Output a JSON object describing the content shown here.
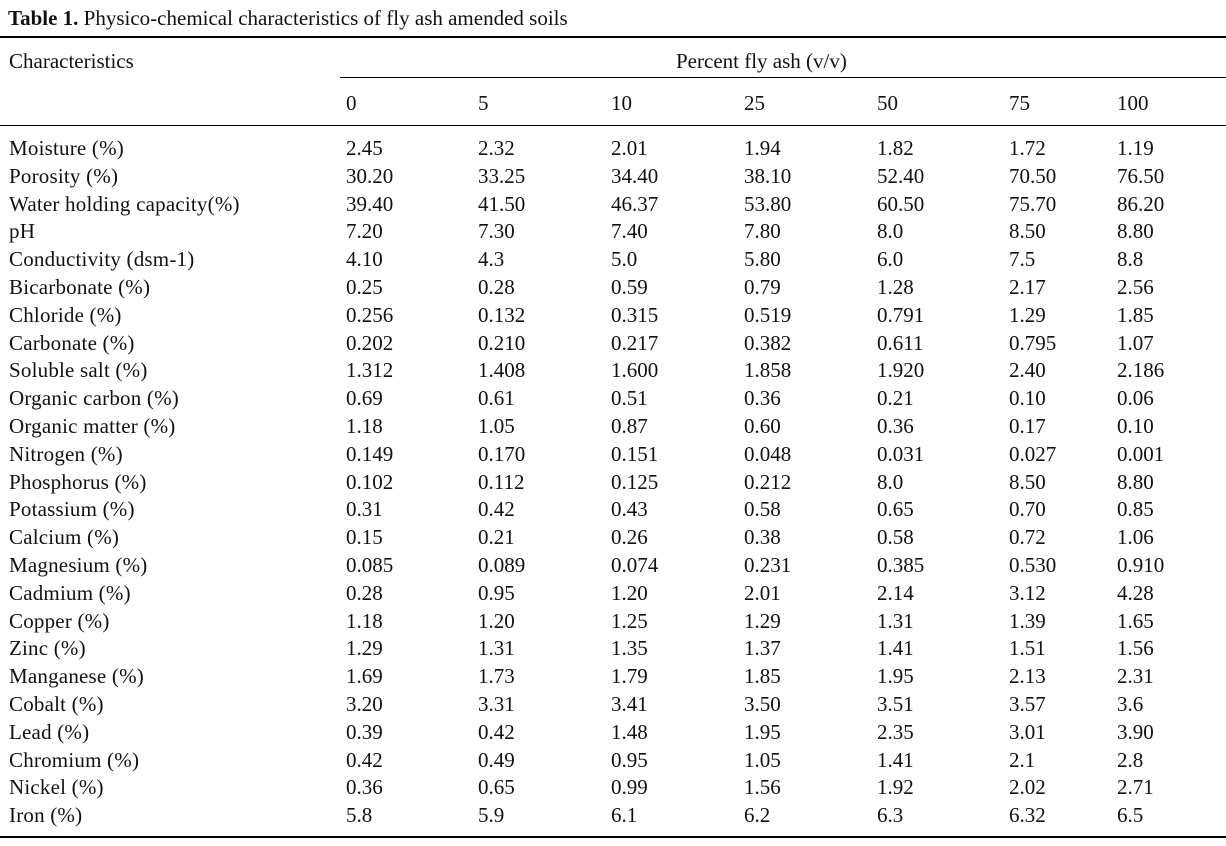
{
  "caption": {
    "label": "Table 1.",
    "text": "Physico-chemical characteristics of fly ash amended soils"
  },
  "table": {
    "row_header": "Characteristics",
    "group_header": "Percent fly ash (v/v)",
    "columns": [
      "0",
      "5",
      "10",
      "25",
      "50",
      "75",
      "100"
    ],
    "rows": [
      {
        "label": "Moisture (%)",
        "values": [
          "2.45",
          "2.32",
          "2.01",
          "1.94",
          "1.82",
          "1.72",
          "1.19"
        ]
      },
      {
        "label": "Porosity (%)",
        "values": [
          "30.20",
          "33.25",
          "34.40",
          "38.10",
          "52.40",
          "70.50",
          "76.50"
        ]
      },
      {
        "label": "Water holding capacity(%)",
        "values": [
          "39.40",
          "41.50",
          "46.37",
          "53.80",
          "60.50",
          "75.70",
          "86.20"
        ]
      },
      {
        "label": "pH",
        "values": [
          "7.20",
          "7.30",
          "7.40",
          "7.80",
          "8.0",
          "8.50",
          "8.80"
        ]
      },
      {
        "label": "Conductivity (dsm-1)",
        "values": [
          "4.10",
          "4.3",
          "5.0",
          "5.80",
          "6.0",
          "7.5",
          "8.8"
        ]
      },
      {
        "label": "Bicarbonate (%)",
        "values": [
          "0.25",
          "0.28",
          "0.59",
          "0.79",
          "1.28",
          "2.17",
          "2.56"
        ]
      },
      {
        "label": "Chloride (%)",
        "values": [
          "0.256",
          "0.132",
          "0.315",
          "0.519",
          "0.791",
          "1.29",
          "1.85"
        ]
      },
      {
        "label": "Carbonate (%)",
        "values": [
          "0.202",
          "0.210",
          "0.217",
          "0.382",
          "0.611",
          "0.795",
          "1.07"
        ]
      },
      {
        "label": "Soluble salt (%)",
        "values": [
          "1.312",
          "1.408",
          "1.600",
          "1.858",
          "1.920",
          "2.40",
          "2.186"
        ]
      },
      {
        "label": "Organic carbon (%)",
        "values": [
          "0.69",
          "0.61",
          "0.51",
          "0.36",
          "0.21",
          "0.10",
          "0.06"
        ]
      },
      {
        "label": "Organic matter (%)",
        "values": [
          "1.18",
          "1.05",
          "0.87",
          "0.60",
          "0.36",
          "0.17",
          "0.10"
        ]
      },
      {
        "label": "Nitrogen (%)",
        "values": [
          "0.149",
          "0.170",
          "0.151",
          "0.048",
          "0.031",
          "0.027",
          "0.001"
        ]
      },
      {
        "label": "Phosphorus (%)",
        "values": [
          "0.102",
          "0.112",
          "0.125",
          "0.212",
          "8.0",
          "8.50",
          "8.80"
        ]
      },
      {
        "label": "Potassium (%)",
        "values": [
          "0.31",
          "0.42",
          "0.43",
          "0.58",
          "0.65",
          "0.70",
          "0.85"
        ]
      },
      {
        "label": "Calcium (%)",
        "values": [
          "0.15",
          "0.21",
          "0.26",
          "0.38",
          "0.58",
          "0.72",
          "1.06"
        ]
      },
      {
        "label": "Magnesium (%)",
        "values": [
          "0.085",
          "0.089",
          "0.074",
          "0.231",
          "0.385",
          "0.530",
          "0.910"
        ]
      },
      {
        "label": "Cadmium (%)",
        "values": [
          "0.28",
          "0.95",
          "1.20",
          "2.01",
          "2.14",
          "3.12",
          "4.28"
        ]
      },
      {
        "label": "Copper (%)",
        "values": [
          "1.18",
          "1.20",
          "1.25",
          "1.29",
          "1.31",
          "1.39",
          "1.65"
        ]
      },
      {
        "label": "Zinc (%)",
        "values": [
          "1.29",
          "1.31",
          "1.35",
          "1.37",
          "1.41",
          "1.51",
          "1.56"
        ]
      },
      {
        "label": "Manganese (%)",
        "values": [
          "1.69",
          "1.73",
          "1.79",
          "1.85",
          "1.95",
          "2.13",
          "2.31"
        ]
      },
      {
        "label": "Cobalt (%)",
        "values": [
          "3.20",
          "3.31",
          "3.41",
          "3.50",
          "3.51",
          "3.57",
          "3.6"
        ]
      },
      {
        "label": "Lead (%)",
        "values": [
          "0.39",
          "0.42",
          "1.48",
          "1.95",
          "2.35",
          "3.01",
          "3.90"
        ]
      },
      {
        "label": "Chromium (%)",
        "values": [
          "0.42",
          "0.49",
          "0.95",
          "1.05",
          "1.41",
          "2.1",
          "2.8"
        ]
      },
      {
        "label": "Nickel (%)",
        "values": [
          "0.36",
          "0.65",
          "0.99",
          "1.56",
          "1.92",
          "2.02",
          "2.71"
        ]
      },
      {
        "label": "Iron (%)",
        "values": [
          "5.8",
          "5.9",
          "6.1",
          "6.2",
          "6.3",
          "6.32",
          "6.5"
        ]
      }
    ]
  }
}
